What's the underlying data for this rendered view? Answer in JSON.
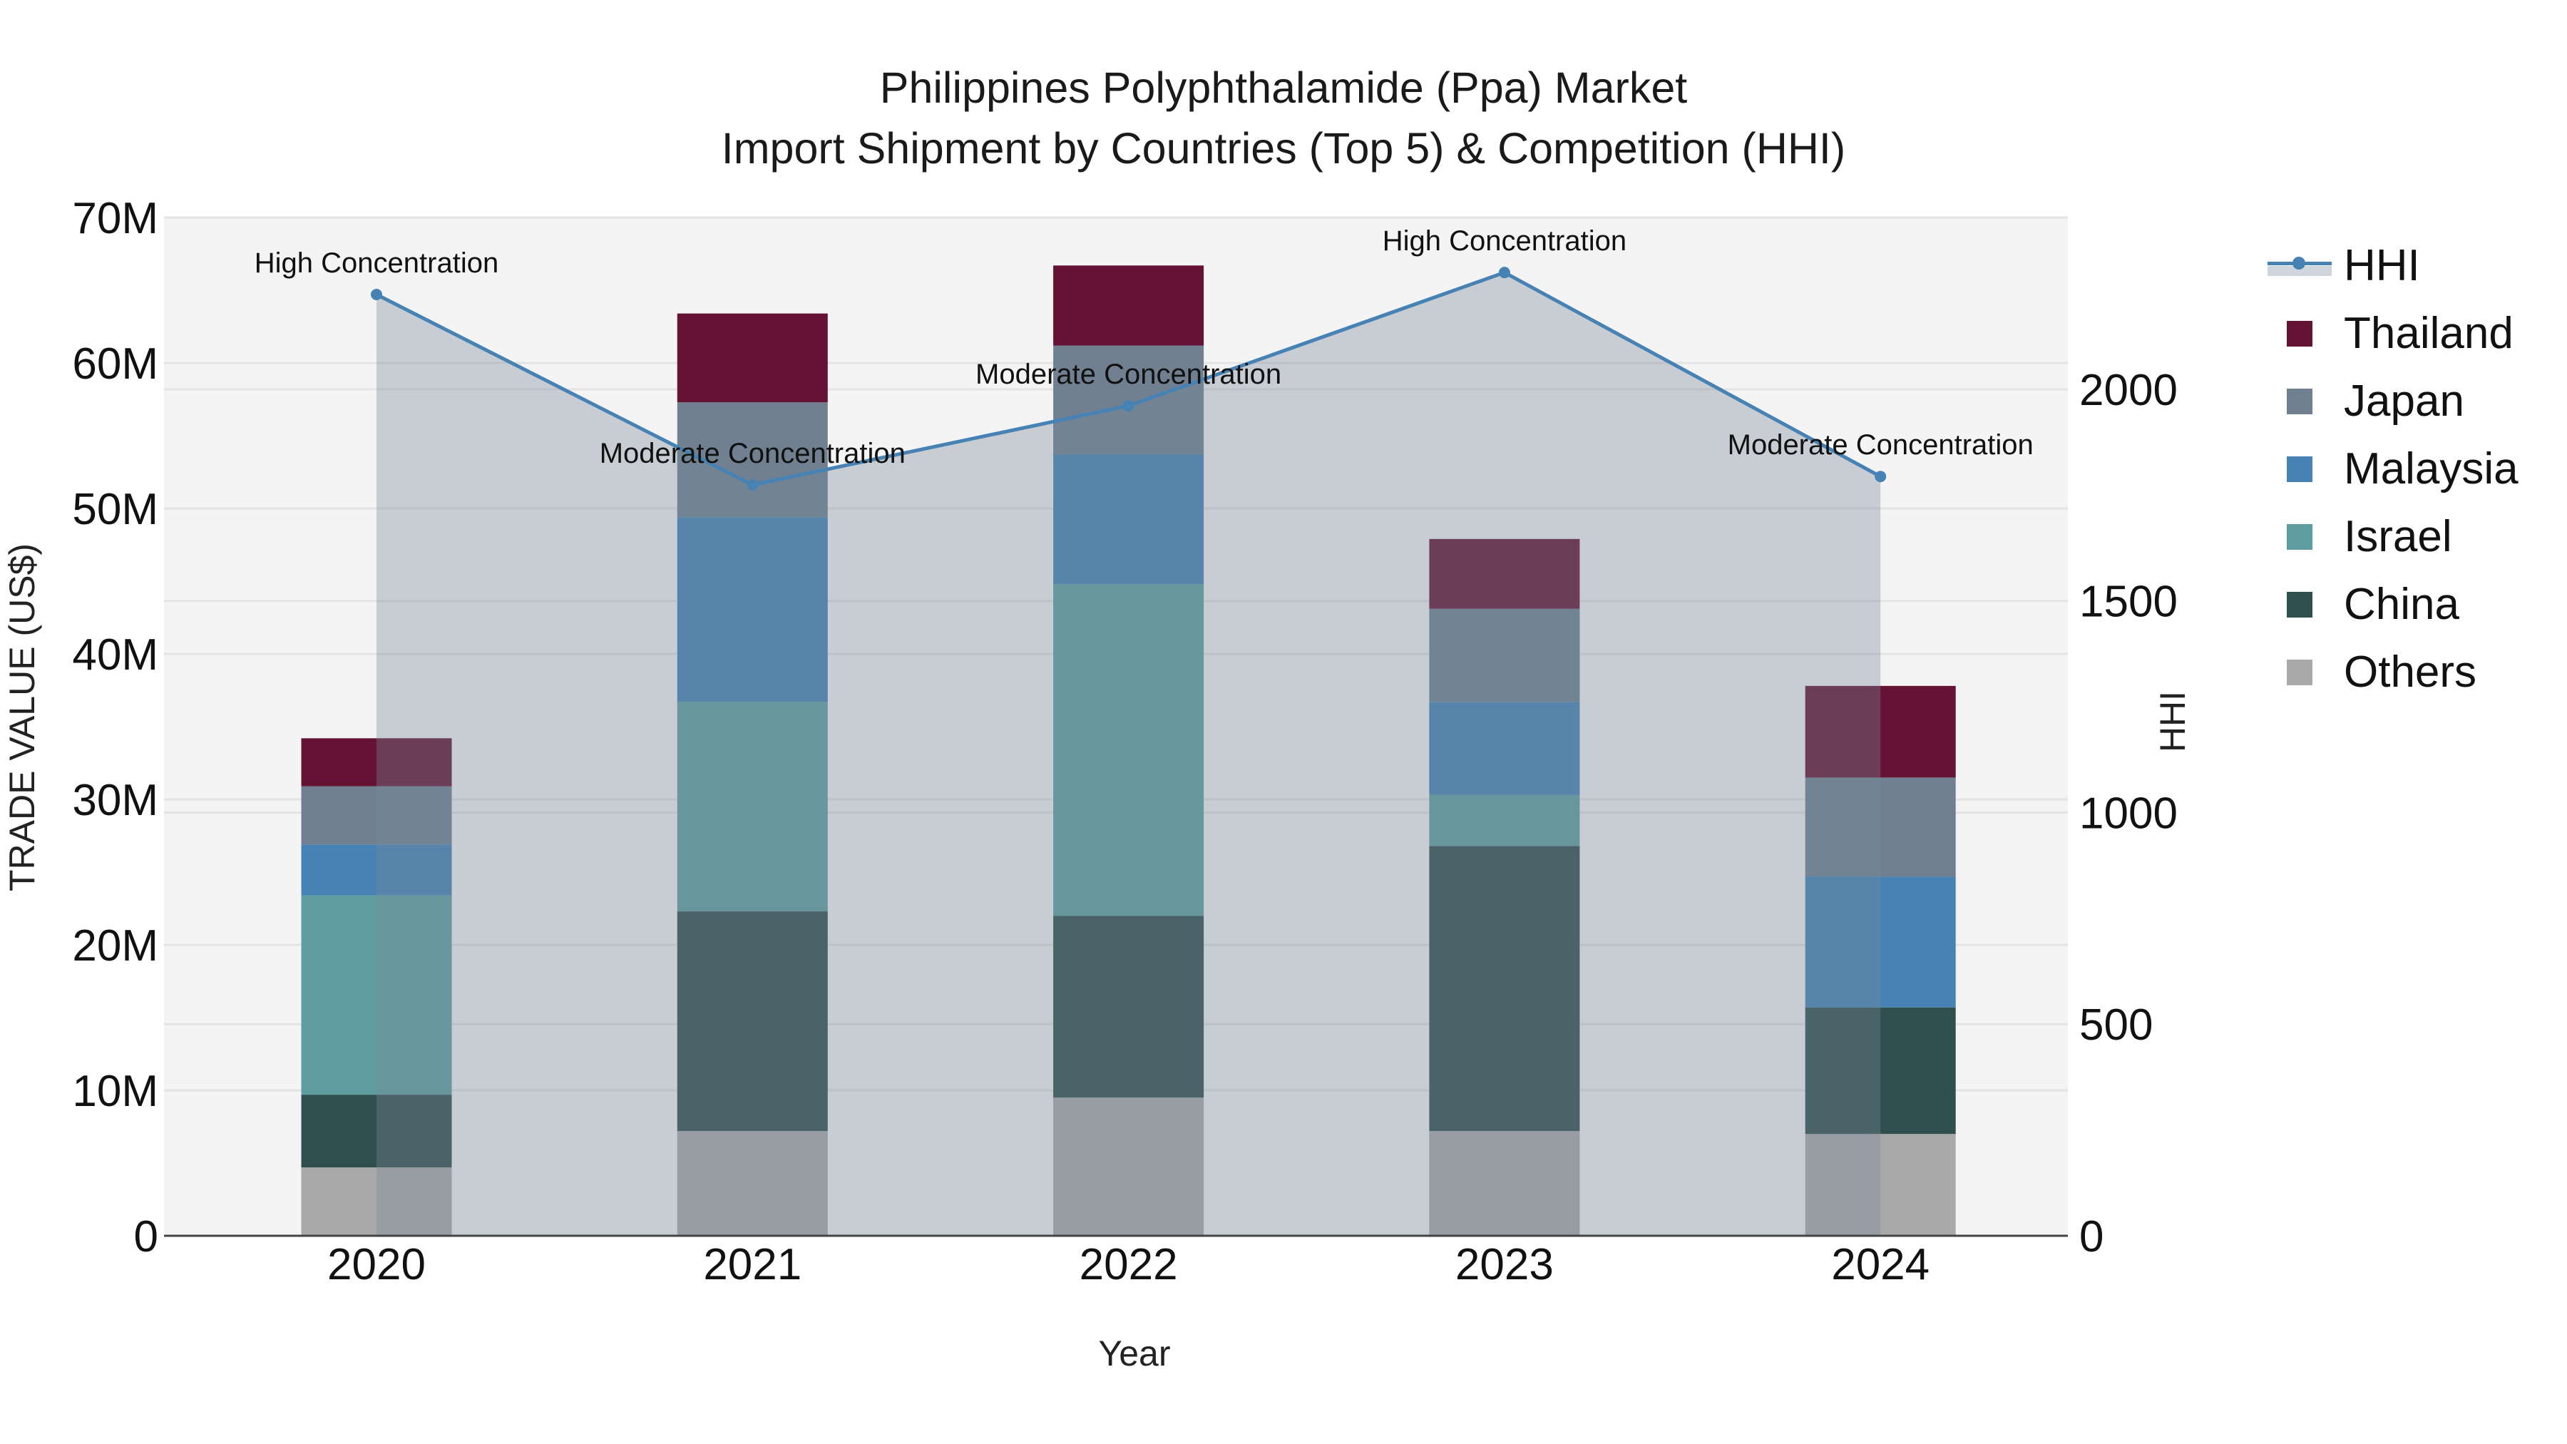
{
  "title": {
    "line1": "Philippines Polyphthalamide (Ppa) Market",
    "line2": "Import Shipment by Countries (Top 5) & Competition (HHI)"
  },
  "axes": {
    "x_title": "Year",
    "y_left_title": "TRADE VALUE (US$)",
    "y_right_title": "HHI",
    "y_left_ticks": [
      "0",
      "10M",
      "20M",
      "30M",
      "40M",
      "50M",
      "60M",
      "70M"
    ],
    "y_right_ticks": [
      "0",
      "500",
      "1000",
      "1500",
      "2000"
    ]
  },
  "legend": {
    "items": [
      {
        "label": "HHI",
        "type": "line-area",
        "color": "#4682b4"
      },
      {
        "label": "Thailand",
        "type": "bar",
        "color": "#641335"
      },
      {
        "label": "Japan",
        "type": "bar",
        "color": "#708090"
      },
      {
        "label": "Malaysia",
        "type": "bar",
        "color": "#4682b4"
      },
      {
        "label": "Israel",
        "type": "bar",
        "color": "#5f9ea0"
      },
      {
        "label": "China",
        "type": "bar",
        "color": "#2f4f4f"
      },
      {
        "label": "Others",
        "type": "bar",
        "color": "#a9a9a9"
      }
    ]
  },
  "colors": {
    "plot_bg": "#f4f4f4",
    "grid": "#e3e3e3",
    "hhi_line": "#4682b4",
    "hhi_fill": "rgba(119,136,153,0.36)",
    "axis_line": "#444444"
  },
  "chart_data": {
    "type": "bar",
    "stacked": true,
    "title": "Philippines Polyphthalamide (Ppa) Market — Import Shipment by Countries (Top 5) & Competition (HHI)",
    "xlabel": "Year",
    "ylabel": "TRADE VALUE (US$)",
    "y2label": "HHI",
    "categories": [
      "2020",
      "2021",
      "2022",
      "2023",
      "2024"
    ],
    "ylim": [
      0,
      70000000
    ],
    "y2lim": [
      0,
      2406
    ],
    "grid": true,
    "legend_position": "right",
    "series": [
      {
        "name": "Others",
        "color": "#a9a9a9",
        "values": [
          4.7,
          7.2,
          9.5,
          7.2,
          7.0
        ]
      },
      {
        "name": "China",
        "color": "#2f4f4f",
        "values": [
          5.0,
          15.1,
          12.5,
          19.6,
          8.7
        ]
      },
      {
        "name": "Israel",
        "color": "#5f9ea0",
        "values": [
          13.7,
          14.4,
          22.8,
          3.5,
          0
        ]
      },
      {
        "name": "Malaysia",
        "color": "#4682b4",
        "values": [
          3.5,
          12.7,
          8.9,
          6.4,
          9.0
        ]
      },
      {
        "name": "Japan",
        "color": "#708090",
        "values": [
          4.0,
          7.9,
          7.5,
          6.4,
          6.8
        ]
      },
      {
        "name": "Thailand",
        "color": "#641335",
        "values": [
          3.3,
          6.1,
          5.5,
          4.8,
          6.3
        ]
      }
    ],
    "value_unit": "million US$",
    "line_series": {
      "name": "HHI",
      "axis": "right",
      "type": "line+area",
      "color": "#4682b4",
      "values": [
        2224,
        1774,
        1961,
        2276,
        1794
      ],
      "annotations": [
        "High Concentration",
        "Moderate Concentration",
        "Moderate Concentration",
        "High Concentration",
        "Moderate Concentration"
      ]
    }
  }
}
